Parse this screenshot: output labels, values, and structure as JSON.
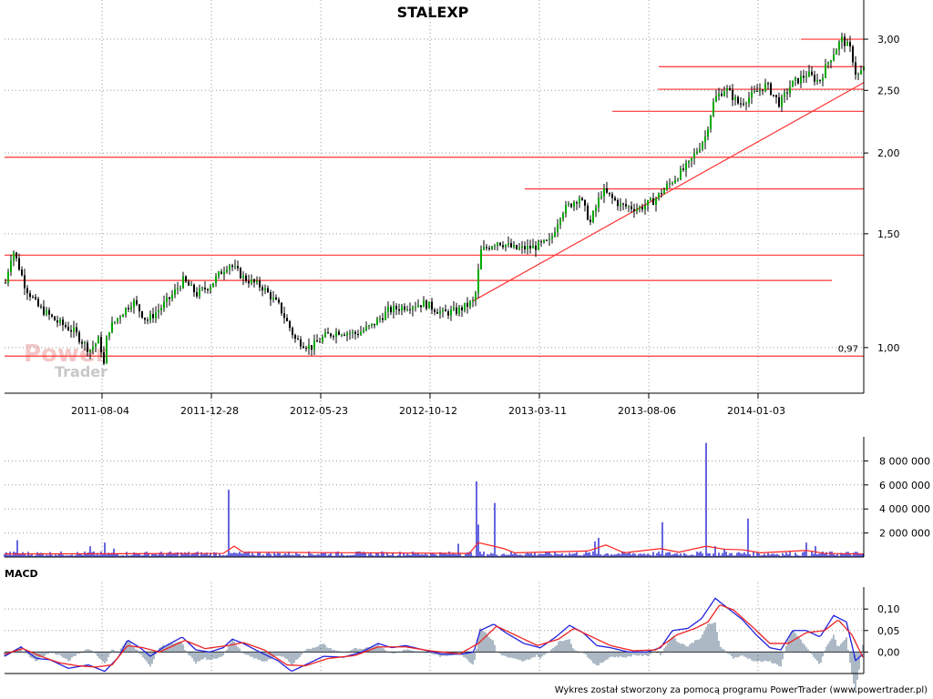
{
  "chart_data": [
    {
      "type": "candlestick",
      "title": "STALEXP",
      "y_scale": "log",
      "ylim": [
        0.85,
        3.15
      ],
      "y_ticks": [
        "3,00",
        "2,50",
        "2,00",
        "1,50",
        "1,00"
      ],
      "y_tick_values": [
        3.0,
        2.5,
        2.0,
        1.5,
        1.0
      ],
      "x_tick_labels": [
        "2011-08-04",
        "2011-12-28",
        "2012-05-23",
        "2012-10-12",
        "2013-03-11",
        "2013-08-06",
        "2014-01-03"
      ],
      "grid": true,
      "candle_up_color": "#00aa00",
      "candle_down_color": "#000000",
      "line_color": "#ff3333",
      "price_path": [
        [
          0,
          1.26
        ],
        [
          8,
          1.42
        ],
        [
          22,
          1.24
        ],
        [
          35,
          1.16
        ],
        [
          55,
          1.1
        ],
        [
          75,
          1.06
        ],
        [
          92,
          0.99
        ],
        [
          103,
          1.03
        ],
        [
          108,
          0.94
        ],
        [
          112,
          1.06
        ],
        [
          125,
          1.12
        ],
        [
          140,
          1.18
        ],
        [
          155,
          1.1
        ],
        [
          170,
          1.15
        ],
        [
          182,
          1.2
        ],
        [
          195,
          1.27
        ],
        [
          210,
          1.21
        ],
        [
          225,
          1.25
        ],
        [
          245,
          1.35
        ],
        [
          262,
          1.28
        ],
        [
          282,
          1.24
        ],
        [
          300,
          1.16
        ],
        [
          318,
          1.03
        ],
        [
          335,
          1.0
        ],
        [
          350,
          1.04
        ],
        [
          365,
          1.06
        ],
        [
          385,
          1.05
        ],
        [
          402,
          1.08
        ],
        [
          420,
          1.14
        ],
        [
          440,
          1.16
        ],
        [
          460,
          1.17
        ],
        [
          480,
          1.13
        ],
        [
          496,
          1.14
        ],
        [
          515,
          1.18
        ],
        [
          522,
          1.41
        ],
        [
          540,
          1.46
        ],
        [
          560,
          1.42
        ],
        [
          580,
          1.43
        ],
        [
          598,
          1.46
        ],
        [
          610,
          1.62
        ],
        [
          630,
          1.71
        ],
        [
          642,
          1.56
        ],
        [
          655,
          1.75
        ],
        [
          675,
          1.66
        ],
        [
          695,
          1.64
        ],
        [
          712,
          1.69
        ],
        [
          730,
          1.8
        ],
        [
          750,
          1.92
        ],
        [
          768,
          2.12
        ],
        [
          778,
          2.42
        ],
        [
          790,
          2.52
        ],
        [
          805,
          2.38
        ],
        [
          820,
          2.46
        ],
        [
          835,
          2.55
        ],
        [
          850,
          2.38
        ],
        [
          862,
          2.55
        ],
        [
          880,
          2.65
        ],
        [
          893,
          2.58
        ],
        [
          905,
          2.8
        ],
        [
          918,
          3.0
        ],
        [
          928,
          2.88
        ],
        [
          934,
          2.62
        ],
        [
          942,
          2.7
        ]
      ],
      "horizontal_levels": [
        {
          "x1": 879,
          "x2": 948,
          "value": 3.0
        },
        {
          "x1": 723,
          "x2": 948,
          "value": 2.72
        },
        {
          "x1": 722,
          "x2": 948,
          "value": 2.51
        },
        {
          "x1": 672,
          "x2": 948,
          "value": 2.32
        },
        {
          "x1": 5,
          "x2": 948,
          "value": 1.97
        },
        {
          "x1": 576,
          "x2": 948,
          "value": 1.76
        },
        {
          "x1": 5,
          "x2": 948,
          "value": 1.39
        },
        {
          "x1": 5,
          "x2": 913,
          "value": 1.27
        },
        {
          "x1": 5,
          "x2": 948,
          "value": 0.97
        }
      ],
      "trend_line": {
        "from": [
          519,
          1.18
        ],
        "to": [
          948,
          2.57
        ]
      },
      "annotation": "0,97"
    },
    {
      "type": "bar",
      "title": "",
      "ylabel": "",
      "ylim": [
        0,
        10000000
      ],
      "y_ticks": [
        "8 000 000",
        "6 000 000",
        "4 000 000",
        "2 000 000"
      ],
      "y_tick_values": [
        8000000,
        6000000,
        4000000,
        2000000
      ],
      "bar_color": "#0000cc",
      "avg_line_color": "#ff2222",
      "baseline_volume": 250000,
      "spikes": [
        [
          15,
          1400000
        ],
        [
          95,
          900000
        ],
        [
          110,
          1200000
        ],
        [
          120,
          700000
        ],
        [
          247,
          5600000
        ],
        [
          498,
          1100000
        ],
        [
          518,
          6300000
        ],
        [
          521,
          2700000
        ],
        [
          539,
          4500000
        ],
        [
          648,
          1300000
        ],
        [
          652,
          1600000
        ],
        [
          723,
          2900000
        ],
        [
          771,
          9500000
        ],
        [
          780,
          900000
        ],
        [
          790,
          700000
        ],
        [
          816,
          3200000
        ],
        [
          880,
          1200000
        ],
        [
          890,
          900000
        ]
      ],
      "avg_points": [
        [
          0,
          250000
        ],
        [
          240,
          300000
        ],
        [
          252,
          900000
        ],
        [
          262,
          400000
        ],
        [
          510,
          300000
        ],
        [
          520,
          1200000
        ],
        [
          548,
          700000
        ],
        [
          560,
          350000
        ],
        [
          640,
          500000
        ],
        [
          660,
          1000000
        ],
        [
          680,
          350000
        ],
        [
          720,
          700000
        ],
        [
          740,
          400000
        ],
        [
          770,
          900000
        ],
        [
          790,
          650000
        ],
        [
          810,
          600000
        ],
        [
          830,
          350000
        ],
        [
          880,
          550000
        ],
        [
          900,
          300000
        ],
        [
          942,
          250000
        ]
      ]
    },
    {
      "type": "line",
      "title": "MACD",
      "ylabel": "",
      "ylim": [
        -0.05,
        0.13
      ],
      "y_ticks": [
        "0,10",
        "0,05",
        "0,00"
      ],
      "y_tick_values": [
        0.1,
        0.05,
        0.0
      ],
      "series": [
        {
          "color": "#2222dd",
          "values": [
            [
              0,
              -0.01
            ],
            [
              18,
              0.012
            ],
            [
              35,
              -0.015
            ],
            [
              50,
              -0.018
            ],
            [
              70,
              -0.038
            ],
            [
              92,
              -0.03
            ],
            [
              110,
              -0.045
            ],
            [
              125,
              -0.012
            ],
            [
              135,
              0.028
            ],
            [
              150,
              0.008
            ],
            [
              160,
              -0.01
            ],
            [
              175,
              0.012
            ],
            [
              195,
              0.035
            ],
            [
              210,
              0.005
            ],
            [
              225,
              0.0
            ],
            [
              240,
              0.01
            ],
            [
              250,
              0.03
            ],
            [
              262,
              0.02
            ],
            [
              280,
              0.0
            ],
            [
              300,
              -0.02
            ],
            [
              315,
              -0.045
            ],
            [
              330,
              -0.03
            ],
            [
              350,
              -0.01
            ],
            [
              372,
              -0.012
            ],
            [
              392,
              0.0
            ],
            [
              410,
              0.02
            ],
            [
              425,
              0.01
            ],
            [
              440,
              0.015
            ],
            [
              460,
              0.005
            ],
            [
              480,
              -0.005
            ],
            [
              500,
              -0.005
            ],
            [
              515,
              0.0
            ],
            [
              522,
              0.05
            ],
            [
              537,
              0.065
            ],
            [
              550,
              0.045
            ],
            [
              570,
              0.02
            ],
            [
              588,
              0.01
            ],
            [
              605,
              0.035
            ],
            [
              620,
              0.062
            ],
            [
              635,
              0.045
            ],
            [
              650,
              0.015
            ],
            [
              665,
              0.01
            ],
            [
              685,
              0.0
            ],
            [
              705,
              0.0
            ],
            [
              720,
              0.01
            ],
            [
              733,
              0.05
            ],
            [
              750,
              0.055
            ],
            [
              765,
              0.078
            ],
            [
              780,
              0.125
            ],
            [
              795,
              0.1
            ],
            [
              810,
              0.075
            ],
            [
              825,
              0.04
            ],
            [
              840,
              0.01
            ],
            [
              852,
              0.005
            ],
            [
              865,
              0.05
            ],
            [
              880,
              0.05
            ],
            [
              895,
              0.035
            ],
            [
              910,
              0.085
            ],
            [
              924,
              0.07
            ],
            [
              934,
              -0.02
            ],
            [
              942,
              -0.005
            ]
          ]
        },
        {
          "color": "#ee2222",
          "values": [
            [
              0,
              -0.005
            ],
            [
              20,
              0.008
            ],
            [
              40,
              -0.01
            ],
            [
              60,
              -0.025
            ],
            [
              80,
              -0.032
            ],
            [
              100,
              -0.035
            ],
            [
              118,
              -0.03
            ],
            [
              135,
              0.015
            ],
            [
              152,
              0.01
            ],
            [
              170,
              0.0
            ],
            [
              198,
              0.027
            ],
            [
              220,
              0.008
            ],
            [
              245,
              0.015
            ],
            [
              262,
              0.022
            ],
            [
              285,
              0.005
            ],
            [
              310,
              -0.03
            ],
            [
              330,
              -0.032
            ],
            [
              355,
              -0.015
            ],
            [
              385,
              -0.008
            ],
            [
              410,
              0.012
            ],
            [
              440,
              0.012
            ],
            [
              470,
              0.002
            ],
            [
              500,
              -0.004
            ],
            [
              520,
              0.02
            ],
            [
              540,
              0.06
            ],
            [
              560,
              0.04
            ],
            [
              585,
              0.015
            ],
            [
              608,
              0.03
            ],
            [
              625,
              0.055
            ],
            [
              645,
              0.035
            ],
            [
              665,
              0.015
            ],
            [
              690,
              0.003
            ],
            [
              715,
              0.005
            ],
            [
              738,
              0.04
            ],
            [
              758,
              0.055
            ],
            [
              772,
              0.07
            ],
            [
              785,
              0.11
            ],
            [
              800,
              0.098
            ],
            [
              820,
              0.06
            ],
            [
              840,
              0.02
            ],
            [
              860,
              0.02
            ],
            [
              880,
              0.045
            ],
            [
              900,
              0.05
            ],
            [
              915,
              0.075
            ],
            [
              930,
              0.04
            ],
            [
              942,
              -0.012
            ]
          ]
        }
      ],
      "histogram_color": "#7f93a6"
    }
  ],
  "watermark": {
    "line1": "Power",
    "line2": "Trader"
  },
  "footer": "Wykres został stworzony za pomocą programu PowerTrader (www.powertrader.pl)"
}
